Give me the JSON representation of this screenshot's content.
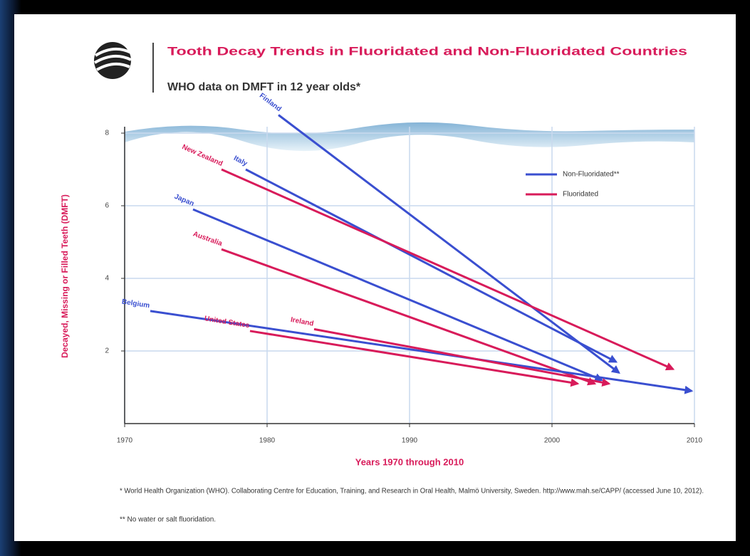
{
  "chart_data": {
    "type": "line",
    "title": "Tooth Decay Trends in Fluoridated and Non-Fluoridated Countries",
    "subtitle": "WHO data on DMFT in 12 year olds*",
    "x_label": "Years 1970 through 2010",
    "y_label": "Decayed, Missing or Filled Teeth (DMFT)",
    "xlim": [
      1970,
      2010
    ],
    "xticks": [
      1970,
      1980,
      1990,
      2000,
      2010
    ],
    "ylim": [
      0,
      8
    ],
    "yticks": [
      2,
      4,
      6,
      8
    ],
    "grid": true,
    "legend_position": "upper right",
    "legend": [
      {
        "name": "Non-Fluoridated**",
        "color": "#3a4fd0"
      },
      {
        "name": "Fluoridated",
        "color": "#d81b5a"
      }
    ],
    "series": [
      {
        "name": "Finland",
        "color": "#3a4fd0",
        "x": [
          1980.8,
          2004.7
        ],
        "values": [
          8.5,
          1.4
        ]
      },
      {
        "name": "Italy",
        "color": "#3a4fd0",
        "x": [
          1978.5,
          2004.5
        ],
        "values": [
          7.0,
          1.7
        ]
      },
      {
        "name": "New Zealand",
        "color": "#d81b5a",
        "x": [
          1976.8,
          2008.5
        ],
        "values": [
          7.0,
          1.5
        ]
      },
      {
        "name": "Japan",
        "color": "#3a4fd0",
        "x": [
          1974.8,
          2003.5
        ],
        "values": [
          5.9,
          1.2
        ]
      },
      {
        "name": "Australia",
        "color": "#d81b5a",
        "x": [
          1976.8,
          2003.0
        ],
        "values": [
          4.8,
          1.1
        ]
      },
      {
        "name": "Belgium",
        "color": "#3a4fd0",
        "x": [
          1971.8,
          2009.8
        ],
        "values": [
          3.1,
          0.9
        ]
      },
      {
        "name": "United States",
        "color": "#d81b5a",
        "x": [
          1978.8,
          2001.8
        ],
        "values": [
          2.55,
          1.1
        ]
      },
      {
        "name": "Ireland",
        "color": "#d81b5a",
        "x": [
          1983.3,
          2004.0
        ],
        "values": [
          2.6,
          1.1
        ]
      }
    ],
    "footnotes": [
      "* World Health Organization (WHO). Collaborating Centre for Education, Training, and Research in Oral Health, Malmö University, Sweden. http://www.mah.se/CAPP/ (accessed June 10, 2012).",
      "** No water or salt fluoridation."
    ]
  }
}
